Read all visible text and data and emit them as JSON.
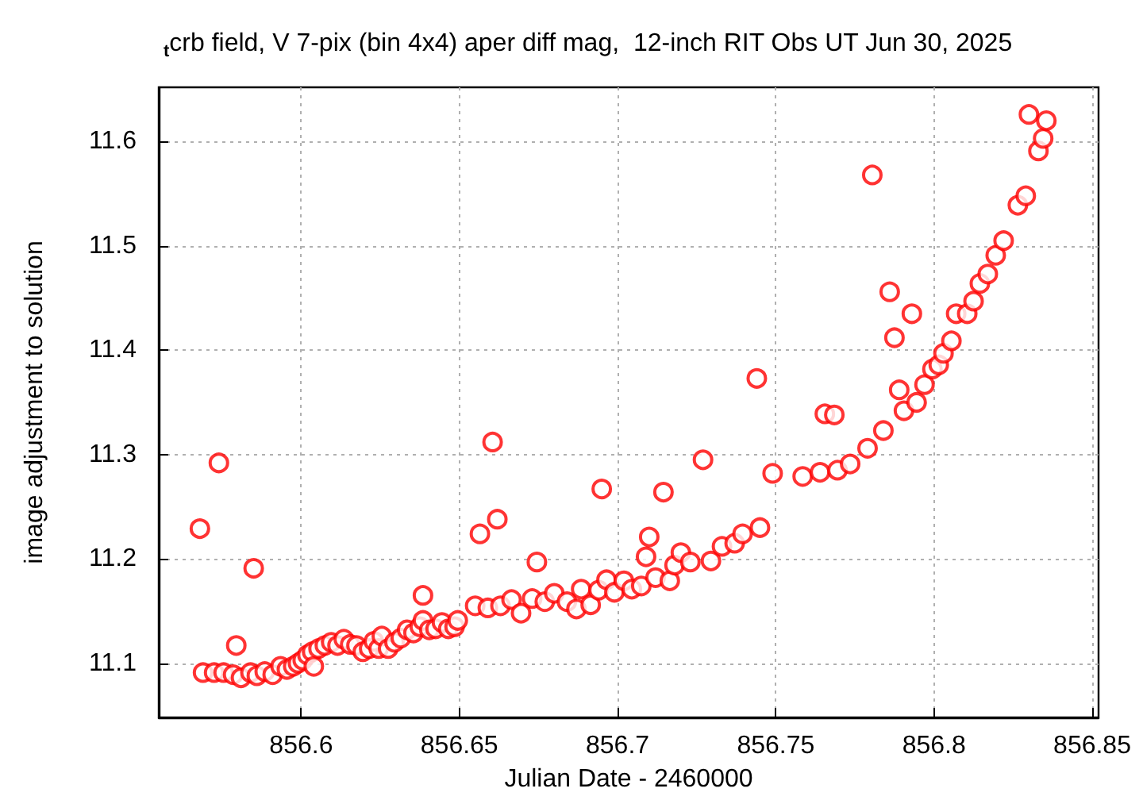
{
  "chart_data": {
    "type": "scatter",
    "title": "$_{t}$crb field, V 7-pix (bin 4x4) aper diff mag,  12-inch RIT Obs UT Jun 30, 2025",
    "xlabel": "Julian Date - 2460000",
    "ylabel": "image adjustment to solution",
    "xlim": [
      856.555,
      856.852
    ],
    "ylim": [
      11.048,
      11.652
    ],
    "xticks": [
      856.6,
      856.65,
      856.7,
      856.75,
      856.8,
      856.85
    ],
    "yticks": [
      11.1,
      11.2,
      11.3,
      11.4,
      11.5,
      11.6
    ],
    "grid": true,
    "marker": "circle",
    "series": [
      {
        "color": "#ff0000",
        "x": [
          856.568,
          856.569,
          856.5725,
          856.574,
          856.5755,
          856.5785,
          856.5795,
          856.581,
          856.584,
          856.585,
          856.586,
          856.5885,
          856.591,
          856.5935,
          856.5955,
          856.5975,
          856.599,
          856.6005,
          856.602,
          856.6035,
          856.604,
          856.6055,
          856.6075,
          856.6095,
          856.6115,
          856.6135,
          856.6155,
          856.6175,
          856.6195,
          856.6215,
          856.623,
          856.6245,
          856.6255,
          856.6275,
          856.6295,
          856.6315,
          856.6335,
          856.6355,
          856.6375,
          856.6385,
          856.6385,
          856.6405,
          856.6425,
          856.6445,
          856.6465,
          856.6485,
          856.6495,
          856.655,
          856.6565,
          856.659,
          856.6605,
          856.662,
          856.663,
          856.6665,
          856.6695,
          856.673,
          856.6745,
          856.677,
          856.68,
          856.684,
          856.687,
          856.6885,
          856.6915,
          856.694,
          856.695,
          856.6965,
          856.699,
          856.702,
          856.7045,
          856.7075,
          856.709,
          856.71,
          856.712,
          856.7145,
          856.7165,
          856.718,
          856.72,
          856.723,
          856.727,
          856.7295,
          856.733,
          856.737,
          856.7395,
          856.744,
          856.745,
          856.749,
          856.7585,
          856.764,
          856.7655,
          856.7685,
          856.7695,
          856.7735,
          856.779,
          856.7805,
          856.784,
          856.786,
          856.7875,
          856.789,
          856.7905,
          856.793,
          856.7945,
          856.797,
          856.7995,
          856.8015,
          856.803,
          856.8055,
          856.807,
          856.8105,
          856.8125,
          856.8145,
          856.817,
          856.8195,
          856.822,
          856.8265,
          856.829,
          856.83,
          856.833,
          856.8345,
          856.8355
        ],
        "values": [
          11.229,
          11.091,
          11.091,
          11.292,
          11.091,
          11.089,
          11.117,
          11.086,
          11.091,
          11.191,
          11.088,
          11.092,
          11.089,
          11.097,
          11.094,
          11.097,
          11.1,
          11.103,
          11.108,
          11.111,
          11.097,
          11.114,
          11.117,
          11.12,
          11.117,
          11.123,
          11.118,
          11.117,
          11.111,
          11.114,
          11.121,
          11.114,
          11.126,
          11.114,
          11.12,
          11.124,
          11.132,
          11.129,
          11.135,
          11.141,
          11.165,
          11.132,
          11.133,
          11.139,
          11.133,
          11.135,
          11.141,
          11.155,
          11.224,
          11.153,
          11.312,
          11.238,
          11.155,
          11.161,
          11.148,
          11.162,
          11.197,
          11.159,
          11.167,
          11.159,
          11.152,
          11.171,
          11.156,
          11.17,
          11.267,
          11.18,
          11.168,
          11.179,
          11.171,
          11.174,
          11.202,
          11.221,
          11.182,
          11.264,
          11.179,
          11.194,
          11.206,
          11.197,
          11.295,
          11.198,
          11.212,
          11.215,
          11.224,
          11.373,
          11.23,
          11.282,
          11.279,
          11.283,
          11.339,
          11.338,
          11.285,
          11.291,
          11.306,
          11.568,
          11.323,
          11.456,
          11.412,
          11.362,
          11.342,
          11.435,
          11.35,
          11.367,
          11.382,
          11.386,
          11.397,
          11.409,
          11.435,
          11.435,
          11.447,
          11.464,
          11.473,
          11.491,
          11.505,
          11.539,
          11.548,
          11.626,
          11.591,
          11.603,
          11.62
        ]
      }
    ]
  }
}
